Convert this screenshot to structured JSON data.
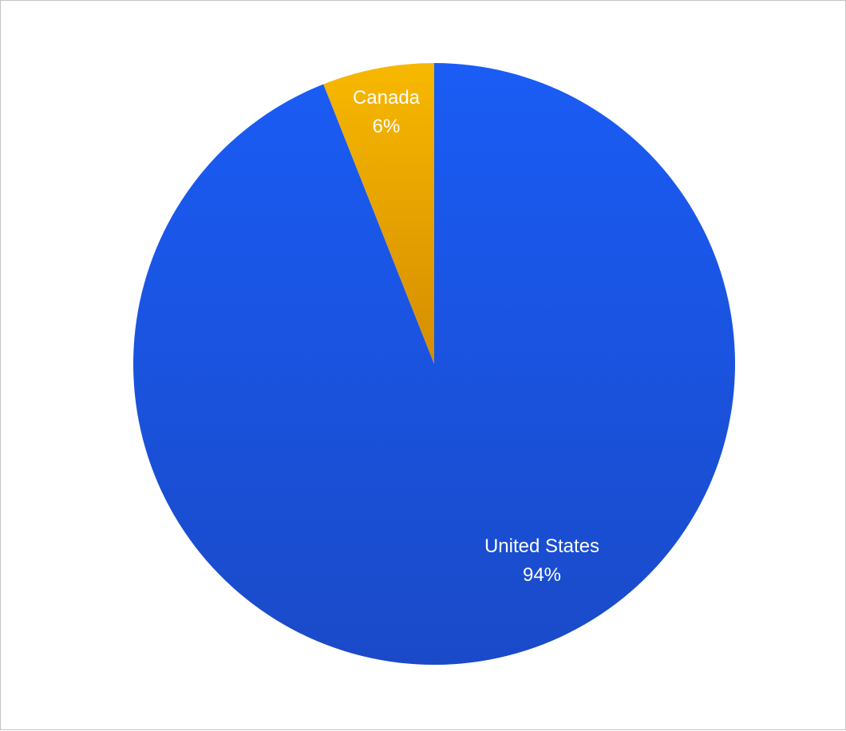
{
  "chart_data": {
    "type": "pie",
    "title": "",
    "slices": [
      {
        "label": "United States",
        "value": 94,
        "value_label": "94%",
        "color": "#1a5cf5",
        "color_dark": "#1a4ac8"
      },
      {
        "label": "Canada",
        "value": 6,
        "value_label": "6%",
        "color": "#f7b800",
        "color_dark": "#d58d00"
      }
    ],
    "start_angle": "12 o'clock",
    "direction": "clockwise",
    "legend": "none",
    "labels": "inside slices"
  }
}
